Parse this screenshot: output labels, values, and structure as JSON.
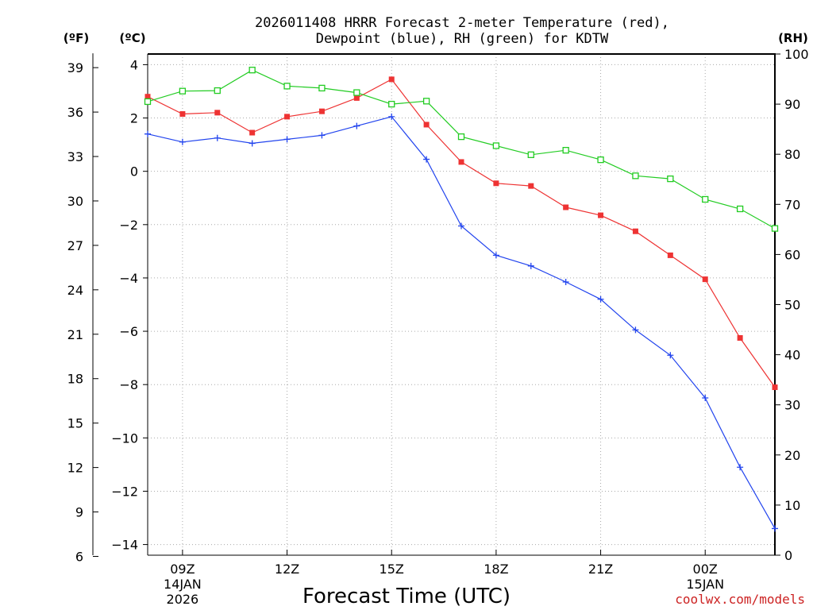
{
  "chart_data": {
    "type": "line",
    "title_line1": "2026011408 HRRR Forecast 2-meter Temperature (red),",
    "title_line2": "Dewpoint (blue), RH (green) for KDTW",
    "xlabel": "Forecast Time (UTC)",
    "left_outer_axis_label": "(ºF)",
    "left_inner_axis_label": "(ºC)",
    "right_axis_label": "(RH)",
    "credit": "coolwx.com/models",
    "hours": [
      8,
      9,
      10,
      11,
      12,
      13,
      14,
      15,
      16,
      17,
      18,
      19,
      20,
      21,
      22,
      23,
      24,
      25,
      26
    ],
    "xlim": [
      8,
      26
    ],
    "x_ticks": [
      {
        "hour": 9,
        "label": "09Z",
        "date1": "14JAN",
        "date2": "2026"
      },
      {
        "hour": 12,
        "label": "12Z",
        "date1": "",
        "date2": ""
      },
      {
        "hour": 15,
        "label": "15Z",
        "date1": "",
        "date2": ""
      },
      {
        "hour": 18,
        "label": "18Z",
        "date1": "",
        "date2": ""
      },
      {
        "hour": 21,
        "label": "21Z",
        "date1": "",
        "date2": ""
      },
      {
        "hour": 24,
        "label": "00Z",
        "date1": "15JAN",
        "date2": ""
      }
    ],
    "celsius_axis": {
      "ylim": [
        -14.4,
        4.4
      ],
      "ticks": [
        4,
        2,
        0,
        -2,
        -4,
        -6,
        -8,
        -10,
        -12,
        -14
      ],
      "tick_labels": [
        "4",
        "2",
        "0",
        "−2",
        "−4",
        "−6",
        "−8",
        "−10",
        "−12",
        "−14"
      ]
    },
    "fahrenheit_axis": {
      "ticks": [
        39,
        36,
        33,
        30,
        27,
        24,
        21,
        18,
        15,
        12,
        9,
        6
      ],
      "tick_labels": [
        "39",
        "36",
        "33",
        "30",
        "27",
        "24",
        "21",
        "18",
        "15",
        "12",
        "9",
        "6"
      ]
    },
    "rh_axis": {
      "ylim": [
        0,
        100
      ],
      "ticks": [
        100,
        90,
        80,
        70,
        60,
        50,
        40,
        30,
        20,
        10,
        0
      ],
      "tick_labels": [
        "100",
        "90",
        "80",
        "70",
        "60",
        "50",
        "40",
        "30",
        "20",
        "10",
        "0"
      ]
    },
    "series": [
      {
        "name": "2-meter Temperature",
        "units": "C",
        "axis": "celsius",
        "color": "#ee3333",
        "marker": "filled-square",
        "values": [
          2.8,
          2.15,
          2.2,
          1.45,
          2.05,
          2.25,
          2.75,
          3.45,
          1.75,
          0.35,
          -0.45,
          -0.55,
          -1.35,
          -1.65,
          -2.25,
          -3.15,
          -4.05,
          -6.25,
          -8.1
        ]
      },
      {
        "name": "Dewpoint",
        "units": "C",
        "axis": "celsius",
        "color": "#2244ee",
        "marker": "plus",
        "values": [
          1.4,
          1.1,
          1.25,
          1.05,
          1.2,
          1.35,
          1.7,
          2.05,
          0.45,
          -2.05,
          -3.15,
          -3.55,
          -4.15,
          -4.8,
          -5.95,
          -6.9,
          -8.5,
          -11.1,
          -13.4
        ]
      },
      {
        "name": "Relative Humidity",
        "units": "%",
        "axis": "rh",
        "color": "#22cc22",
        "marker": "open-square",
        "values": [
          90.5,
          92.6,
          92.7,
          96.8,
          93.6,
          93.2,
          92.3,
          90.0,
          90.6,
          83.5,
          81.7,
          79.9,
          80.8,
          78.9,
          75.7,
          75.1,
          71.0,
          69.1,
          65.2
        ]
      }
    ]
  }
}
